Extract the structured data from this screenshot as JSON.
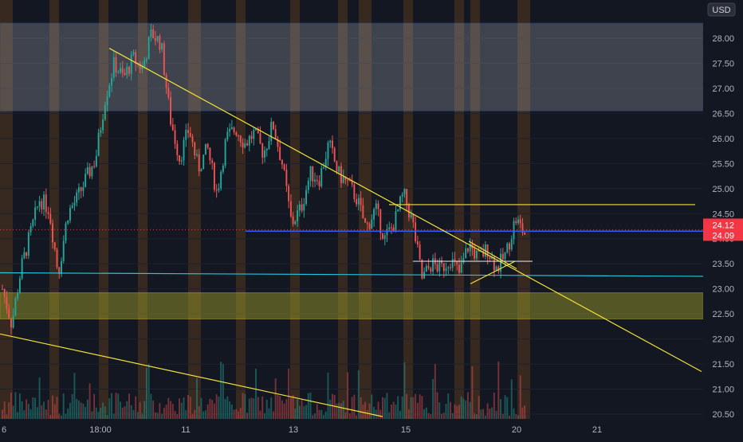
{
  "chart_data": {
    "type": "candlestick",
    "title": "",
    "currency": "USD",
    "y_axis": {
      "ticks": [
        "28.00",
        "27.50",
        "27.00",
        "26.50",
        "26.00",
        "25.50",
        "25.00",
        "24.50",
        "24.00",
        "23.50",
        "23.00",
        "22.50",
        "22.00",
        "21.50",
        "21.00",
        "20.50"
      ],
      "ylim": [
        20.4,
        28.6
      ],
      "side": "right"
    },
    "x_axis": {
      "ticks": [
        "6",
        "18:00",
        "11",
        "13",
        "15",
        "20",
        "21"
      ]
    },
    "price_labels": {
      "last": "24.12",
      "previous": "24.09"
    },
    "colors": {
      "up": "#26a69a",
      "down": "#ef5350",
      "trendline": "#f2e13a",
      "resistance_zone": "#b2b5be",
      "support_zone": "#a3a32a",
      "horizontal_blue": "#2962ff",
      "horizontal_teal": "#26c6da",
      "session_band": "#7a4a1c",
      "last_price": "#f23645"
    },
    "zones": [
      {
        "name": "resistance",
        "from": 26.55,
        "to": 28.3
      },
      {
        "name": "support",
        "from": 22.4,
        "to": 22.92
      }
    ],
    "levels": [
      {
        "name": "blue-horizontal",
        "price": 24.15
      },
      {
        "name": "teal-sloped",
        "start": 23.32,
        "end": 23.25
      },
      {
        "name": "yellow-top",
        "price": 24.68
      },
      {
        "name": "white-short",
        "price": 23.55
      }
    ],
    "trendlines": [
      {
        "name": "main-downtrend",
        "from_price": 27.8,
        "to_price": 21.35
      },
      {
        "name": "lower-trend",
        "from_price": 22.1,
        "to_price": 20.45
      },
      {
        "name": "triangle-lower",
        "from_price": 23.1,
        "to_price": 23.55
      },
      {
        "name": "triangle-upper",
        "from_price": 23.95,
        "to_price": 23.4
      }
    ],
    "price_path": [
      23.0,
      22.3,
      23.4,
      24.1,
      24.8,
      24.6,
      23.3,
      24.5,
      24.8,
      25.2,
      25.6,
      26.8,
      27.5,
      27.2,
      27.6,
      27.4,
      28.1,
      27.9,
      26.4,
      25.6,
      26.2,
      25.4,
      25.8,
      24.9,
      26.0,
      26.2,
      25.9,
      26.1,
      25.7,
      26.3,
      25.5,
      24.3,
      24.6,
      25.3,
      25.2,
      25.9,
      25.3,
      25.1,
      24.8,
      24.2,
      24.6,
      24.0,
      24.3,
      24.9,
      24.3,
      23.2,
      23.5,
      23.4,
      23.6,
      23.3,
      23.9,
      23.6,
      23.8,
      23.4,
      23.7,
      24.4,
      24.1
    ]
  }
}
